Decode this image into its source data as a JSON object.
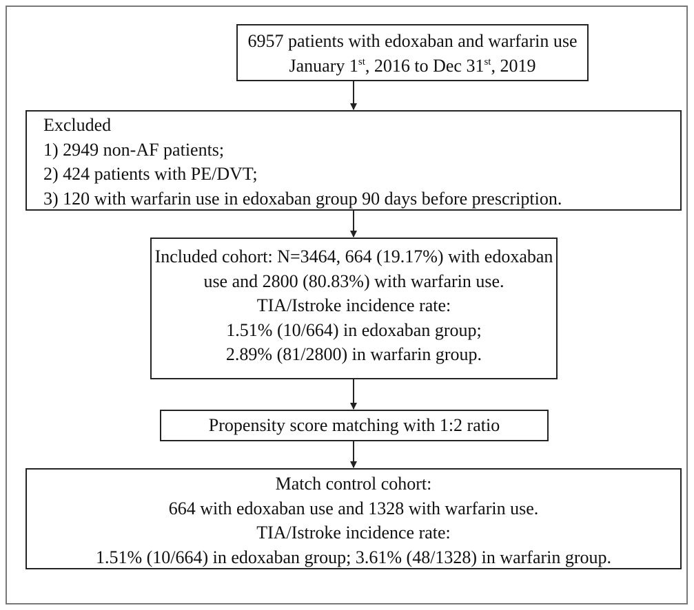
{
  "nodes": [
    {
      "lines": [
        [
          "6957 patients with edoxaban and warfarin use"
        ],
        [
          "January 1",
          "st",
          ", 2016 to Dec 31",
          "st",
          ", 2019"
        ]
      ]
    },
    {
      "lines": [
        [
          "Excluded"
        ],
        [
          "1) 2949 non-AF patients;"
        ],
        [
          "2) 424 patients with PE/DVT;"
        ],
        [
          "3) 120 with warfarin use in edoxaban group 90 days before prescription."
        ]
      ]
    },
    {
      "lines": [
        [
          "Included cohort: N=3464, 664 (19.17%) with edoxaban"
        ],
        [
          "use and 2800 (80.83%) with warfarin use."
        ],
        [
          "TIA/Istroke incidence rate:"
        ],
        [
          "1.51% (10/664) in edoxaban group;"
        ],
        [
          "2.89% (81/2800) in warfarin group."
        ]
      ]
    },
    {
      "lines": [
        [
          "Propensity score matching with 1:2 ratio"
        ]
      ]
    },
    {
      "lines": [
        [
          "Match control cohort:"
        ],
        [
          "664 with edoxaban use and 1328 with warfarin use."
        ],
        [
          "TIA/Istroke incidence rate:"
        ],
        [
          "1.51% (10/664) in edoxaban group; 3.61% (48/1328) in warfarin group."
        ]
      ]
    }
  ]
}
